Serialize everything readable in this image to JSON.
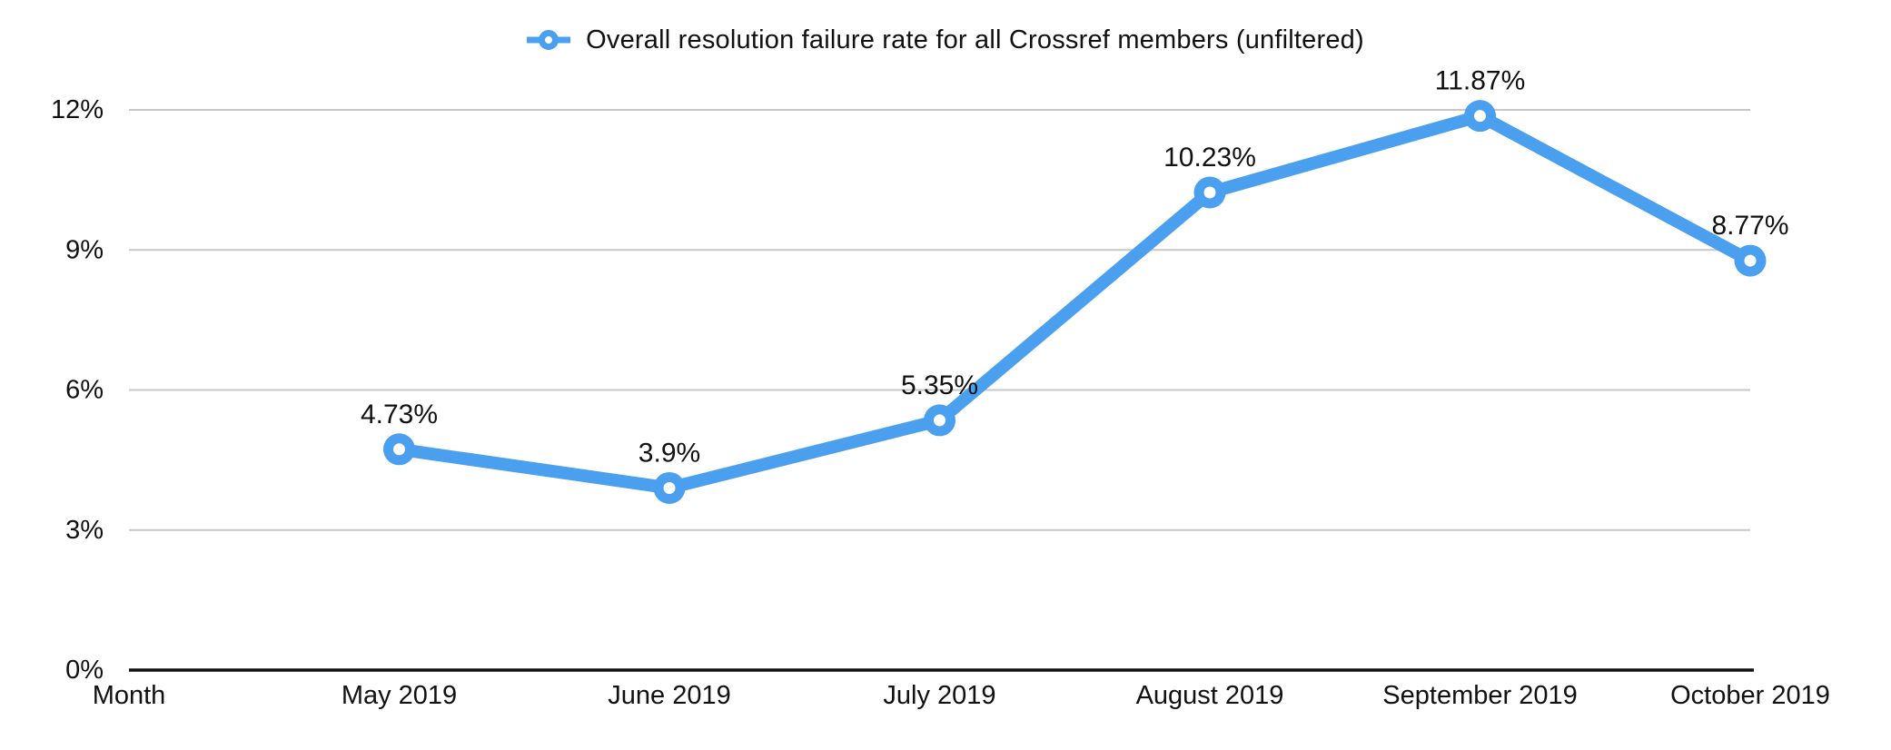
{
  "legend": {
    "label": "Overall resolution failure rate for all Crossref members (unfiltered)",
    "marker_icon": "line-point-ring-icon",
    "position": "top-center"
  },
  "chart_data": {
    "type": "line",
    "title": "",
    "categories": [
      "Month",
      "May 2019",
      "June 2019",
      "July 2019",
      "August 2019",
      "September 2019",
      "October 2019"
    ],
    "series": [
      {
        "name": "Overall resolution failure rate for all Crossref members (unfiltered)",
        "values": [
          null,
          4.73,
          3.9,
          5.35,
          10.23,
          11.87,
          8.77
        ],
        "data_labels": [
          "",
          "4.73%",
          "3.9%",
          "5.35%",
          "10.23%",
          "11.87%",
          "8.77%"
        ],
        "color": "#4A9FEE",
        "marker": "ring"
      }
    ],
    "x_axis": {
      "first_tick_label": "Month",
      "tick_labels": [
        "Month",
        "May 2019",
        "June 2019",
        "July 2019",
        "August 2019",
        "September 2019",
        "October 2019"
      ]
    },
    "y_axis": {
      "tick_labels": [
        "0%",
        "3%",
        "6%",
        "9%",
        "12%"
      ],
      "tick_values": [
        0,
        3,
        6,
        9,
        12
      ],
      "min": 0,
      "max": 12,
      "unit": "%"
    },
    "grid": true,
    "legend_position": "top",
    "colors": {
      "line": "#4A9FEE",
      "marker_fill": "#ffffff",
      "gridline": "#c7c7c7",
      "axis_line": "#111111",
      "text": "#111111",
      "background": "#ffffff"
    }
  }
}
